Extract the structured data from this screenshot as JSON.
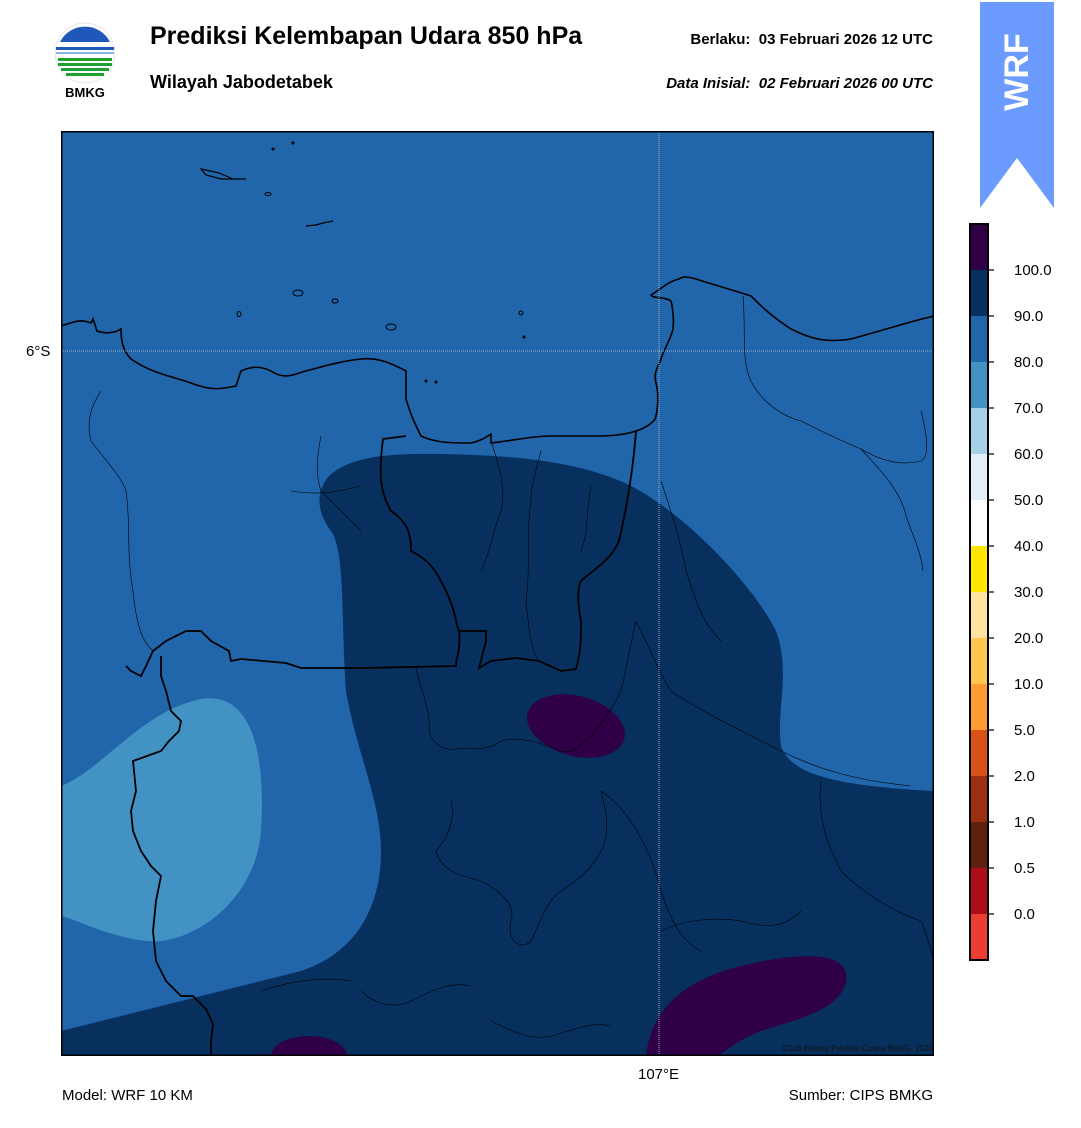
{
  "header": {
    "logo_text": "BMKG",
    "title": "Prediksi Kelembapan Udara 850 hPa",
    "subtitle": "Wilayah Jabodetabek",
    "valid_label": "Berlaku:",
    "valid_value": "03 Februari 2026 12 UTC",
    "init_label": "Data Inisial:",
    "init_value": "02 Februari 2026 00 UTC"
  },
  "badge": {
    "text": "WRF",
    "color": "#6b9bff"
  },
  "map": {
    "lat_label": "6°S",
    "lon_label": "107°E",
    "copyright": "©Sub Bidang Prediksi Cuaca BMKG, 2020"
  },
  "colorbar": {
    "labels": [
      "100.0",
      "90.0",
      "80.0",
      "70.0",
      "60.0",
      "50.0",
      "40.0",
      "30.0",
      "20.0",
      "10.0",
      "5.0",
      "2.0",
      "1.0",
      "0.5",
      "0.0"
    ],
    "colors": [
      "#2f0046",
      "#08305f",
      "#2165ab",
      "#4292c4",
      "#a5d0e5",
      "#e2eef8",
      "#ffffff",
      "#ffe600",
      "#ffe1a0",
      "#ffc550",
      "#ff9b32",
      "#d95215",
      "#9b3010",
      "#5e2010",
      "#ac0e17",
      "#eb3d32"
    ]
  },
  "footer": {
    "model": "Model: WRF 10 KM",
    "source": "Sumber: CIPS BMKG"
  }
}
